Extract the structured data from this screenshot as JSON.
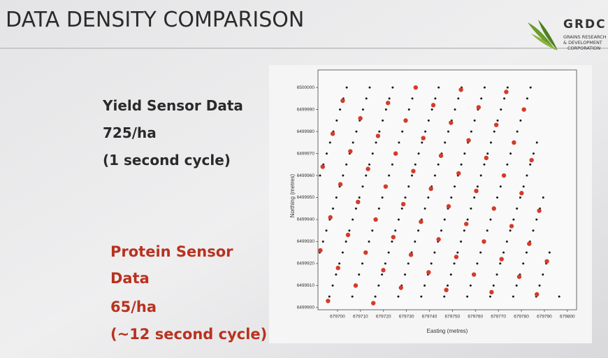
{
  "slide": {
    "title": "DATA DENSITY COMPARISON",
    "logo": {
      "name": "GRDC",
      "lines": [
        "GRAINS RESEARCH",
        "& DEVELOPMENT",
        "CORPORATION"
      ]
    },
    "yield_text": [
      "Yield Sensor Data",
      "725/ha",
      "(1 second cycle)"
    ],
    "protein_text": [
      "Protein Sensor",
      "Data",
      "65/ha",
      "(~12 second cycle)"
    ]
  },
  "chart_data": {
    "type": "scatter",
    "xlabel": "Easting (metres)",
    "ylabel": "Northing (metres)",
    "xlim": [
      679691.5,
      679804
    ],
    "ylim": [
      6499899,
      6500008
    ],
    "xticks": [
      679700,
      679710,
      679720,
      679730,
      679740,
      679750,
      679760,
      679770,
      679780,
      679790,
      679800
    ],
    "yticks": [
      6499900,
      6499910,
      6499920,
      6499930,
      6499940,
      6499950,
      6499960,
      6499970,
      6499980,
      6499990,
      6500000
    ],
    "series": [
      {
        "color": "#1a1a1a",
        "x": [
          679692.4,
          679693.85,
          679695.3,
          679696.75,
          679698.2,
          679699.65,
          679701.1,
          679702.55,
          679704
        ],
        "y": [
          6499960,
          6499965,
          6499970,
          6499975,
          6499980,
          6499985,
          6499990,
          6499995,
          6500000
        ]
      },
      {
        "color": "#1a1a1a",
        "x": [
          679692.25,
          679693.7,
          679695.15,
          679696.6,
          679698.05,
          679699.5,
          679700.95,
          679702.4,
          679703.85,
          679705.3,
          679706.75,
          679708.2,
          679709.65,
          679711.1,
          679712.55,
          679714
        ],
        "y": [
          6499925,
          6499930,
          6499935,
          6499940,
          6499945,
          6499950,
          6499955,
          6499960,
          6499965,
          6499970,
          6499975,
          6499980,
          6499985,
          6499990,
          6499995,
          6500000
        ]
      },
      {
        "color": "#1a1a1a",
        "x": [
          679696.45,
          679697.9,
          679699.35,
          679700.8,
          679702.25,
          679703.7,
          679705.15,
          679706.6,
          679708.05,
          679709.5,
          679710.95,
          679712.4,
          679713.85,
          679715.3,
          679716.75,
          679718.2,
          679719.65,
          679721.1,
          679722.55,
          679724
        ],
        "y": [
          6499905,
          6499910,
          6499915,
          6499920,
          6499925,
          6499930,
          6499935,
          6499940,
          6499945,
          6499950,
          6499955,
          6499960,
          6499965,
          6499970,
          6499975,
          6499980,
          6499985,
          6499990,
          6499995,
          6500000
        ]
      },
      {
        "color": "#1a1a1a",
        "x": [
          679706.45,
          679707.9,
          679709.35,
          679710.8,
          679712.25,
          679713.7,
          679715.15,
          679716.6,
          679718.05,
          679719.5,
          679720.95,
          679722.4,
          679723.85,
          679725.3,
          679726.75,
          679728.2,
          679729.65,
          679731.1,
          679732.55,
          679734
        ],
        "y": [
          6499905,
          6499910,
          6499915,
          6499920,
          6499925,
          6499930,
          6499935,
          6499940,
          6499945,
          6499950,
          6499955,
          6499960,
          6499965,
          6499970,
          6499975,
          6499980,
          6499985,
          6499990,
          6499995,
          6500000
        ]
      },
      {
        "color": "#1a1a1a",
        "x": [
          679716.45,
          679717.9,
          679719.35,
          679720.8,
          679722.25,
          679723.7,
          679725.15,
          679726.6,
          679728.05,
          679729.5,
          679730.95,
          679732.4,
          679733.85,
          679735.3,
          679736.75,
          679738.2,
          679739.65,
          679741.1,
          679742.55,
          679744
        ],
        "y": [
          6499905,
          6499910,
          6499915,
          6499920,
          6499925,
          6499930,
          6499935,
          6499940,
          6499945,
          6499950,
          6499955,
          6499960,
          6499965,
          6499970,
          6499975,
          6499980,
          6499985,
          6499990,
          6499995,
          6500000
        ]
      },
      {
        "color": "#1a1a1a",
        "x": [
          679726.45,
          679727.9,
          679729.35,
          679730.8,
          679732.25,
          679733.7,
          679735.15,
          679736.6,
          679738.05,
          679739.5,
          679740.95,
          679742.4,
          679743.85,
          679745.3,
          679746.75,
          679748.2,
          679749.65,
          679751.1,
          679752.55,
          679754
        ],
        "y": [
          6499905,
          6499910,
          6499915,
          6499920,
          6499925,
          6499930,
          6499935,
          6499940,
          6499945,
          6499950,
          6499955,
          6499960,
          6499965,
          6499970,
          6499975,
          6499980,
          6499985,
          6499990,
          6499995,
          6500000
        ]
      },
      {
        "color": "#1a1a1a",
        "x": [
          679736.45,
          679737.9,
          679739.35,
          679740.8,
          679742.25,
          679743.7,
          679745.15,
          679746.6,
          679748.05,
          679749.5,
          679750.95,
          679752.4,
          679753.85,
          679755.3,
          679756.75,
          679758.2,
          679759.65,
          679761.1,
          679762.55,
          679764
        ],
        "y": [
          6499905,
          6499910,
          6499915,
          6499920,
          6499925,
          6499930,
          6499935,
          6499940,
          6499945,
          6499950,
          6499955,
          6499960,
          6499965,
          6499970,
          6499975,
          6499980,
          6499985,
          6499990,
          6499995,
          6500000
        ]
      },
      {
        "color": "#1a1a1a",
        "x": [
          679746.45,
          679747.9,
          679749.35,
          679750.8,
          679752.25,
          679753.7,
          679755.15,
          679756.6,
          679758.05,
          679759.5,
          679760.95,
          679762.4,
          679763.85,
          679765.3,
          679766.75,
          679768.2,
          679769.65,
          679771.1,
          679772.55,
          679774
        ],
        "y": [
          6499905,
          6499910,
          6499915,
          6499920,
          6499925,
          6499930,
          6499935,
          6499940,
          6499945,
          6499950,
          6499955,
          6499960,
          6499965,
          6499970,
          6499975,
          6499980,
          6499985,
          6499990,
          6499995,
          6500000
        ]
      },
      {
        "color": "#1a1a1a",
        "x": [
          679756.45,
          679757.9,
          679759.35,
          679760.8,
          679762.25,
          679763.7,
          679765.15,
          679766.6,
          679768.05,
          679769.5,
          679770.95,
          679772.4,
          679773.85,
          679775.3,
          679776.75,
          679778.2,
          679779.65,
          679781.1,
          679782.55,
          679784
        ],
        "y": [
          6499905,
          6499910,
          6499915,
          6499920,
          6499925,
          6499930,
          6499935,
          6499940,
          6499945,
          6499950,
          6499955,
          6499960,
          6499965,
          6499970,
          6499975,
          6499980,
          6499985,
          6499990,
          6499995,
          6500000
        ]
      },
      {
        "color": "#1a1a1a",
        "x": [
          679766.45,
          679767.9,
          679769.35,
          679770.8,
          679772.25,
          679773.7,
          679775.15,
          679776.6,
          679778.05,
          679779.5,
          679780.95,
          679782.4,
          679783.85,
          679785.3,
          679786.75
        ],
        "y": [
          6499905,
          6499910,
          6499915,
          6499920,
          6499925,
          6499930,
          6499935,
          6499940,
          6499945,
          6499950,
          6499955,
          6499960,
          6499965,
          6499970,
          6499975
        ]
      },
      {
        "color": "#1a1a1a",
        "x": [
          679776.45,
          679777.9,
          679779.35,
          679780.8,
          679782.25,
          679783.7,
          679785.15,
          679786.6,
          679788.05,
          679789.5
        ],
        "y": [
          6499905,
          6499910,
          6499915,
          6499920,
          6499925,
          6499930,
          6499935,
          6499940,
          6499945,
          6499950
        ]
      },
      {
        "color": "#1a1a1a",
        "x": [
          679786.45,
          679787.9,
          679789.35,
          679790.8,
          679792.25
        ],
        "y": [
          6499905,
          6499910,
          6499915,
          6499920,
          6499925
        ]
      },
      {
        "color": "#1a1a1a",
        "x": [
          679796.45
        ],
        "y": [
          6499905
        ]
      },
      {
        "color": "#d63a2a",
        "x": [
          679693.56,
          679697.91,
          679702.26,
          679692.54,
          679696.89,
          679701.24,
          679705.59,
          679709.94,
          679695.87,
          679700.22,
          679704.57,
          679708.92,
          679713.27,
          679717.62,
          679721.97,
          679707.9,
          679712.25,
          679716.6,
          679720.95,
          679725.3,
          679729.65,
          679734,
          679715.58,
          679719.93,
          679724.28,
          679728.63,
          679732.98,
          679737.33,
          679741.68,
          679727.61,
          679731.96,
          679736.31,
          679740.66,
          679745.01,
          679749.36,
          679753.71,
          679739.64,
          679743.99,
          679748.34,
          679752.69,
          679757.04,
          679761.39,
          679747.32,
          679751.67,
          679756.02,
          679760.37,
          679764.72,
          679769.07,
          679773.42,
          679759.35,
          679763.7,
          679768.05,
          679772.4,
          679776.75,
          679781.1,
          679767.03,
          679771.38,
          679775.73,
          679780.08,
          679784.43,
          679779.06,
          679783.41,
          679787.76,
          679786.74,
          679791.09
        ],
        "y": [
          6499964,
          6499979,
          6499994,
          6499926,
          6499941,
          6499956,
          6499971,
          6499986,
          6499903,
          6499918,
          6499933,
          6499948,
          6499963,
          6499978,
          6499993,
          6499910,
          6499925,
          6499940,
          6499955,
          6499970,
          6499985,
          6500000,
          6499902,
          6499917,
          6499932,
          6499947,
          6499962,
          6499977,
          6499992,
          6499909,
          6499924,
          6499939,
          6499954,
          6499969,
          6499984,
          6499999,
          6499916,
          6499931,
          6499946,
          6499961,
          6499976,
          6499991,
          6499908,
          6499923,
          6499938,
          6499953,
          6499968,
          6499983,
          6499998,
          6499915,
          6499930,
          6499945,
          6499960,
          6499975,
          6499990,
          6499907,
          6499922,
          6499937,
          6499952,
          6499967,
          6499914,
          6499929,
          6499944,
          6499906,
          6499921
        ]
      }
    ]
  }
}
